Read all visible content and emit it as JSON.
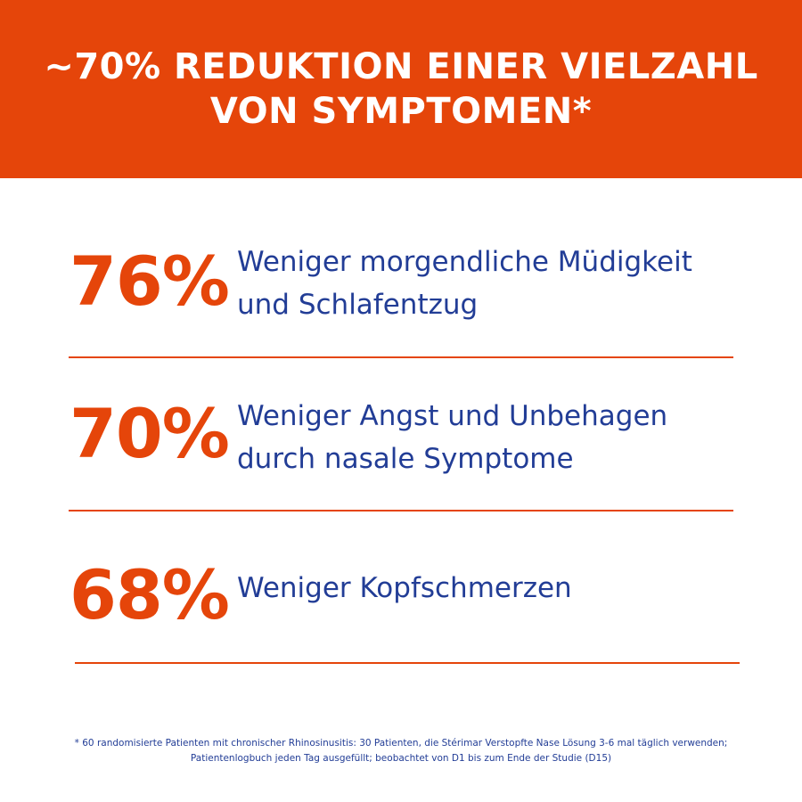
{
  "header": {
    "title_line1": "~70% REDUKTION EINER VIELZAHL",
    "title_line2": "VON SYMPTOMEN*"
  },
  "stats": [
    {
      "value": "76%",
      "text_line1": "Weniger morgendliche Müdigkeit",
      "text_line2": "und Schlafentzug"
    },
    {
      "value": "70%",
      "text_line1": "Weniger Angst und Unbehagen",
      "text_line2": "durch nasale Symptome"
    },
    {
      "value": "68%",
      "text_line1": "Weniger Kopfschmerzen"
    }
  ],
  "footnote": {
    "line1": "* 60 randomisierte Patienten mit chronischer Rhinosinusitis: 30 Patienten, die Stérimar Verstopfte Nase Lösung 3-6 mal täglich verwenden;",
    "line2": "Patientenlogbuch jeden Tag ausgefüllt; beobachtet von D1 bis zum Ende der Studie (D15)"
  },
  "colors": {
    "accent": "#e5450a",
    "text_blue": "#223d96",
    "background": "#ffffff"
  }
}
